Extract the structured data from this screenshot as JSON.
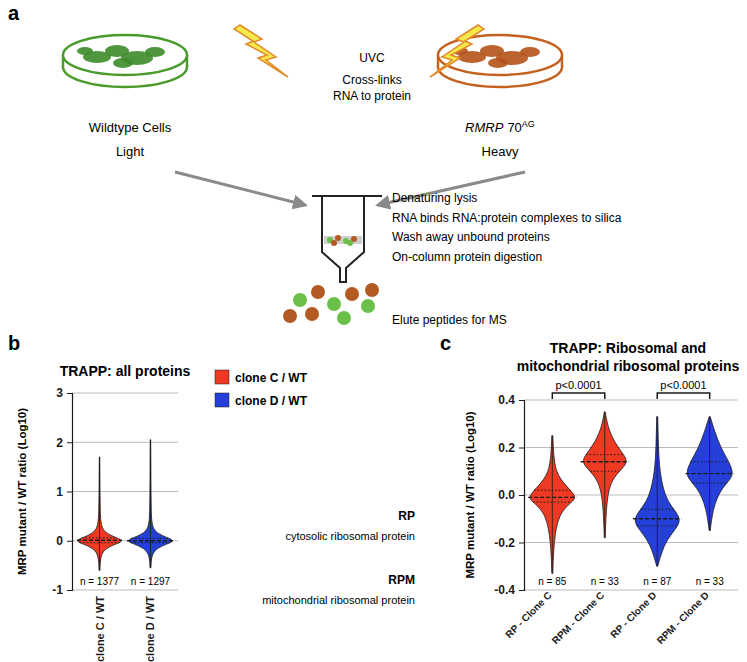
{
  "diagram": {
    "panel": "a",
    "left_cells": {
      "title": "Wildtype Cells",
      "label": "Light"
    },
    "right_cells": {
      "gene": "RMRP",
      "allele": "70",
      "allele_sup": "AG",
      "label": "Heavy"
    },
    "center": [
      "UVC",
      "Cross-links",
      "RNA to protein"
    ],
    "steps": [
      "Denaturing lysis",
      "RNA binds RNA:protein complexes to silica",
      "Wash away unbound proteins",
      "On-column protein digestion"
    ],
    "output": "Elute peptides for MS"
  },
  "chart_data": [
    {
      "type": "violin",
      "panel": "b",
      "title": "TRAPP: all proteins",
      "y_label": "MRP mutant / WT ratio (Log10)",
      "categories": [
        "clone C / WT",
        "clone D / WT"
      ],
      "ylim": [
        -1,
        3
      ],
      "yticks": [
        -1,
        0,
        1,
        2,
        3
      ],
      "grid": true,
      "legend": "upper right",
      "series": [
        {
          "name": "clone C / WT",
          "color": "#ee3a23"
        },
        {
          "name": "clone D / WT",
          "color": "#2540d9"
        }
      ],
      "violins": [
        {
          "color": "#ee3a23",
          "min": -0.6,
          "q1": -0.04,
          "median": 0.01,
          "q3": 0.06,
          "max": 1.7,
          "n_label": "n = 1377",
          "shape": {
            "y": [
              -0.6,
              -0.3,
              -0.15,
              -0.05,
              0,
              0.05,
              0.15,
              0.3,
              0.6,
              1.0,
              1.7
            ],
            "width": [
              0.02,
              0.04,
              0.25,
              0.8,
              1,
              0.8,
              0.25,
              0.06,
              0.03,
              0.02,
              0.01
            ]
          }
        },
        {
          "color": "#2540d9",
          "min": -0.55,
          "q1": -0.04,
          "median": 0.0,
          "q3": 0.05,
          "max": 2.05,
          "n_label": "n = 1297",
          "shape": {
            "y": [
              -0.55,
              -0.3,
              -0.15,
              -0.05,
              0,
              0.05,
              0.15,
              0.3,
              0.6,
              1.2,
              2.05
            ],
            "width": [
              0.02,
              0.04,
              0.25,
              0.8,
              1,
              0.8,
              0.25,
              0.06,
              0.03,
              0.02,
              0.01
            ]
          }
        }
      ]
    },
    {
      "type": "violin",
      "panel": "c",
      "title": [
        "TRAPP: Ribosomal and",
        "mitochondrial ribosomal proteins"
      ],
      "y_label": "MRP mutant / WT ratio (Log10)",
      "categories": [
        "RP - Clone C",
        "RPM - Clone C",
        "RP - Clone D",
        "RPM - Clone D"
      ],
      "ylim": [
        -0.4,
        0.4
      ],
      "yticks": [
        -0.4,
        -0.2,
        {
          "value": 0,
          "label": "0.0"
        },
        0.2,
        0.4
      ],
      "grid": true,
      "annotations": [
        {
          "label": "RP",
          "text": "cytosolic ribosomal protein"
        },
        {
          "label": "RPM",
          "text": "mitochondrial ribosomal protein"
        }
      ],
      "comparisons": [
        {
          "from": 0,
          "to": 1,
          "label": "p<0.0001"
        },
        {
          "from": 2,
          "to": 3,
          "label": "p<0.0001"
        }
      ],
      "violins": [
        {
          "color": "#ee3a23",
          "min": -0.33,
          "q1": -0.03,
          "median": -0.01,
          "q3": 0.02,
          "max": 0.25,
          "n_label": "n = 85",
          "shape": {
            "y": [
              -0.33,
              -0.2,
              -0.08,
              -0.03,
              -0.01,
              0.02,
              0.08,
              0.15,
              0.25
            ],
            "width": [
              0.02,
              0.06,
              0.25,
              0.8,
              1,
              0.75,
              0.2,
              0.06,
              0.02
            ]
          }
        },
        {
          "color": "#ee3a23",
          "min": -0.18,
          "q1": 0.1,
          "median": 0.14,
          "q3": 0.17,
          "max": 0.35,
          "n_label": "n = 33",
          "shape": {
            "y": [
              -0.18,
              -0.05,
              0.05,
              0.1,
              0.14,
              0.18,
              0.24,
              0.3,
              0.35
            ],
            "width": [
              0.02,
              0.06,
              0.2,
              0.6,
              1,
              0.7,
              0.3,
              0.1,
              0.02
            ]
          }
        },
        {
          "color": "#2540d9",
          "min": -0.3,
          "q1": -0.13,
          "median": -0.1,
          "q3": -0.06,
          "max": 0.33,
          "n_label": "n = 87",
          "shape": {
            "y": [
              -0.3,
              -0.2,
              -0.14,
              -0.1,
              -0.05,
              0,
              0.1,
              0.2,
              0.33
            ],
            "width": [
              0.02,
              0.3,
              0.8,
              1,
              0.6,
              0.3,
              0.1,
              0.05,
              0.02
            ]
          }
        },
        {
          "color": "#2540d9",
          "min": -0.15,
          "q1": 0.05,
          "median": 0.09,
          "q3": 0.14,
          "max": 0.33,
          "n_label": "n = 33",
          "shape": {
            "y": [
              -0.15,
              -0.05,
              0.02,
              0.06,
              0.09,
              0.14,
              0.2,
              0.27,
              0.33
            ],
            "width": [
              0.02,
              0.15,
              0.45,
              0.8,
              1,
              0.8,
              0.45,
              0.2,
              0.02
            ]
          }
        }
      ]
    }
  ]
}
